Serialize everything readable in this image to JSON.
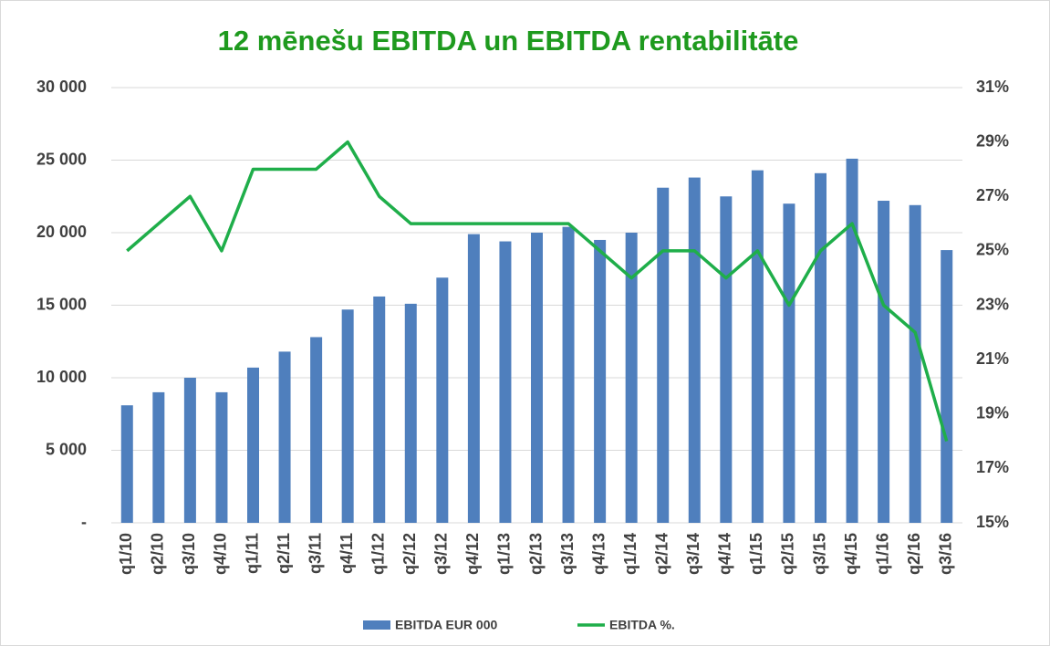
{
  "chart_data": {
    "type": "bar",
    "title": "12 mēnešu EBITDA un EBITDA rentabilitāte",
    "categories": [
      "q1/10",
      "q2/10",
      "q3/10",
      "q4/10",
      "q1/11",
      "q2/11",
      "q3/11",
      "q4/11",
      "q1/12",
      "q2/12",
      "q3/12",
      "q4/12",
      "q1/13",
      "q2/13",
      "q3/13",
      "q4/13",
      "q1/14",
      "q2/14",
      "q3/14",
      "q4/14",
      "q1/15",
      "q2/15",
      "q3/15",
      "q4/15",
      "q1/16",
      "q2/16",
      "q3/16"
    ],
    "series": [
      {
        "name": "EBITDA EUR 000",
        "type": "bar",
        "color": "#4f7fbd",
        "values": [
          8100,
          9000,
          10000,
          9000,
          10700,
          11800,
          12800,
          14700,
          15600,
          15100,
          16900,
          19900,
          19400,
          20000,
          20400,
          19500,
          20000,
          23100,
          23800,
          22500,
          24300,
          22000,
          24100,
          25100,
          22200,
          21900,
          18800
        ]
      },
      {
        "name": "EBITDA %.",
        "type": "line",
        "axis": "y2",
        "color": "#1fae4a",
        "values": [
          25,
          26,
          27,
          25,
          28,
          28,
          28,
          29,
          27,
          26,
          26,
          26,
          26,
          26,
          26,
          25,
          24,
          25,
          25,
          24,
          25,
          23,
          25,
          26,
          23,
          22,
          18
        ]
      }
    ],
    "ylim": [
      0,
      30000
    ],
    "yticks": [
      {
        "value": 0,
        "label": "-"
      },
      {
        "value": 5000,
        "label": "5 000"
      },
      {
        "value": 10000,
        "label": "10 000"
      },
      {
        "value": 15000,
        "label": "15 000"
      },
      {
        "value": 20000,
        "label": "20 000"
      },
      {
        "value": 25000,
        "label": "25 000"
      },
      {
        "value": 30000,
        "label": "30 000"
      }
    ],
    "y2lim": [
      15,
      31
    ],
    "y2ticks": [
      {
        "value": 15,
        "label": "15%"
      },
      {
        "value": 17,
        "label": "17%"
      },
      {
        "value": 19,
        "label": "19%"
      },
      {
        "value": 21,
        "label": "21%"
      },
      {
        "value": 23,
        "label": "23%"
      },
      {
        "value": 25,
        "label": "25%"
      },
      {
        "value": 27,
        "label": "27%"
      },
      {
        "value": 29,
        "label": "29%"
      },
      {
        "value": 31,
        "label": "31%"
      }
    ],
    "grid": true,
    "legend": "bottom"
  }
}
